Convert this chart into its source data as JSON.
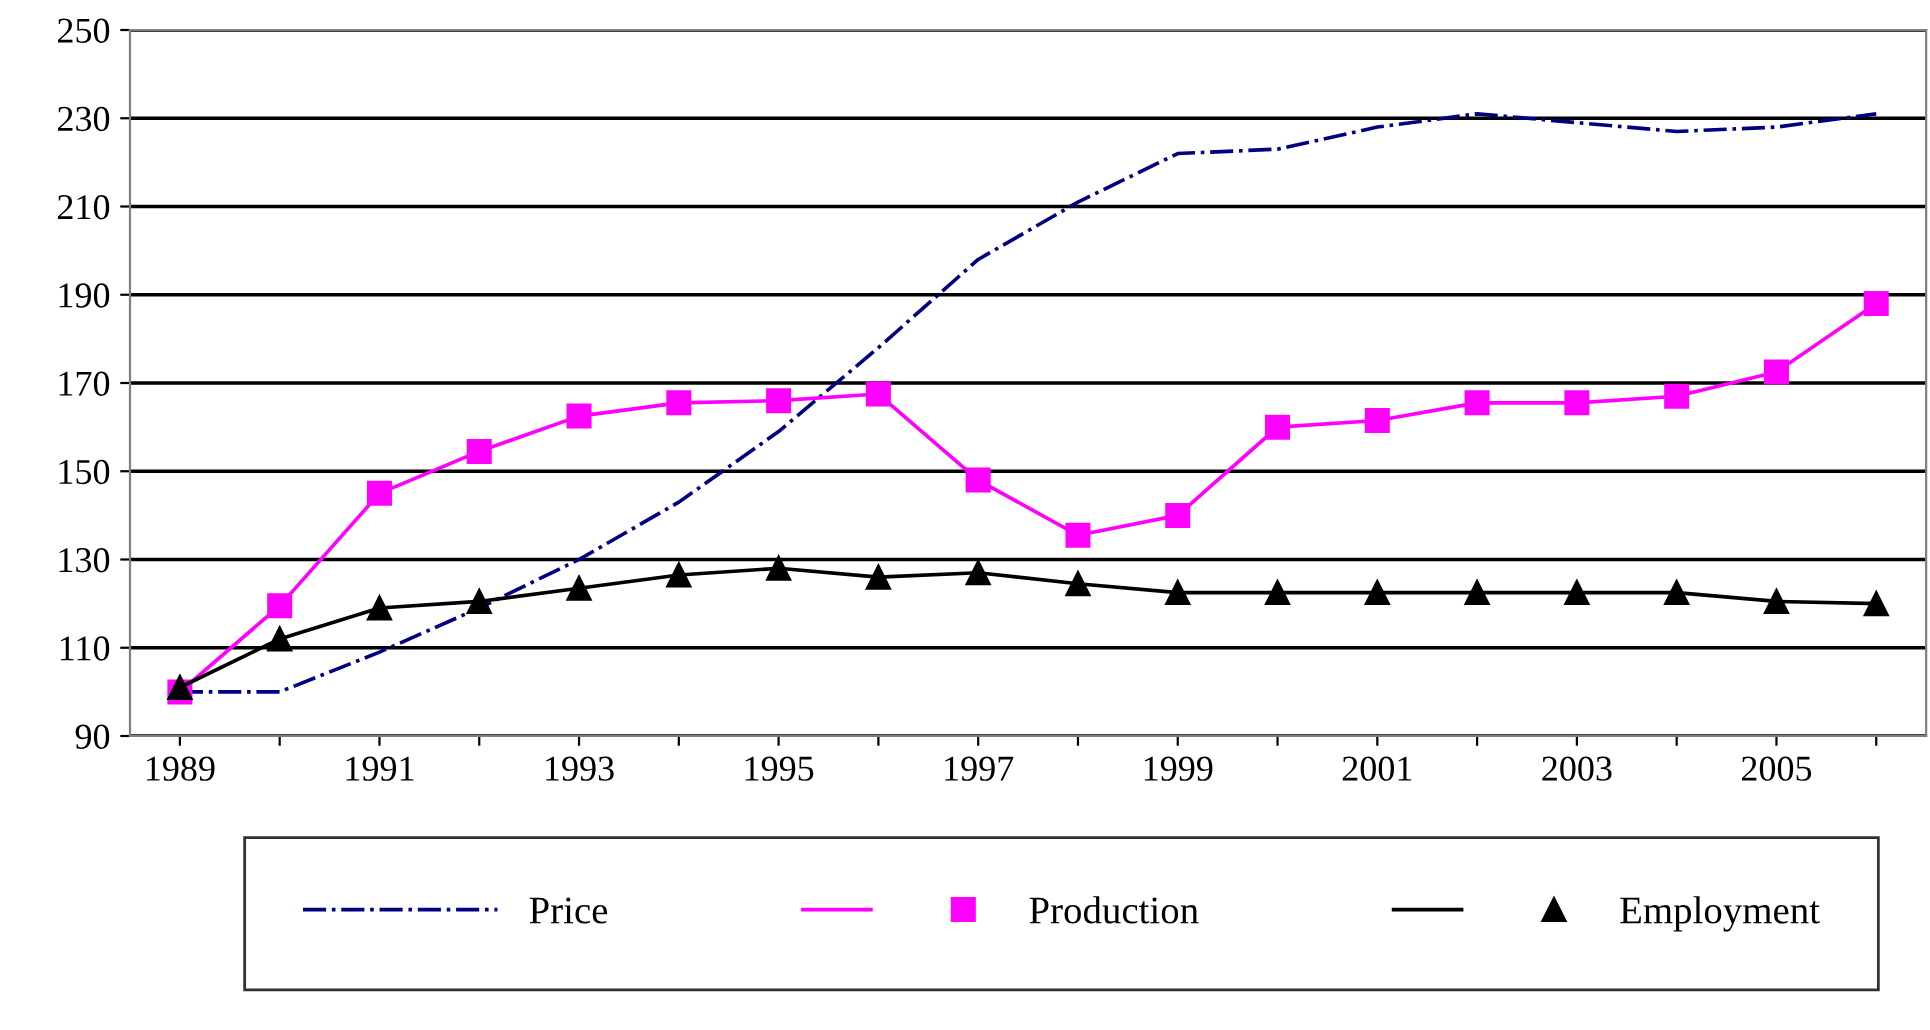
{
  "chart_data": {
    "type": "line",
    "categories": [
      "1989",
      null,
      "1991",
      null,
      "1993",
      null,
      "1995",
      null,
      "1997",
      null,
      "1999",
      null,
      "2001",
      null,
      "2003",
      null,
      "2005",
      null
    ],
    "series": [
      {
        "name": "Price",
        "color": "#000080",
        "line_style": "dashdot",
        "marker": "none",
        "values": [
          100,
          100,
          109,
          119,
          130,
          143,
          159,
          178,
          198,
          211,
          222,
          223,
          228,
          231,
          229,
          227,
          228,
          231
        ]
      },
      {
        "name": "Production",
        "color": "#ff00ff",
        "line_style": "solid",
        "marker": "square",
        "values": [
          100,
          119.5,
          145,
          154.5,
          162.5,
          165.5,
          166,
          167.5,
          148,
          135.5,
          140,
          160,
          161.5,
          165.5,
          165.5,
          167,
          172.5,
          188
        ]
      },
      {
        "name": "Employment",
        "color": "#000000",
        "line_style": "solid",
        "marker": "triangle",
        "values": [
          101,
          112,
          119,
          120.5,
          123.5,
          126.5,
          128,
          126,
          127,
          124.5,
          122.5,
          122.5,
          122.5,
          122.5,
          122.5,
          122.5,
          120.5,
          120
        ]
      }
    ],
    "ylim": [
      90,
      250
    ],
    "yticks": [
      90,
      110,
      130,
      150,
      170,
      190,
      210,
      230,
      250
    ],
    "grid": "y",
    "legend": "bottom"
  }
}
